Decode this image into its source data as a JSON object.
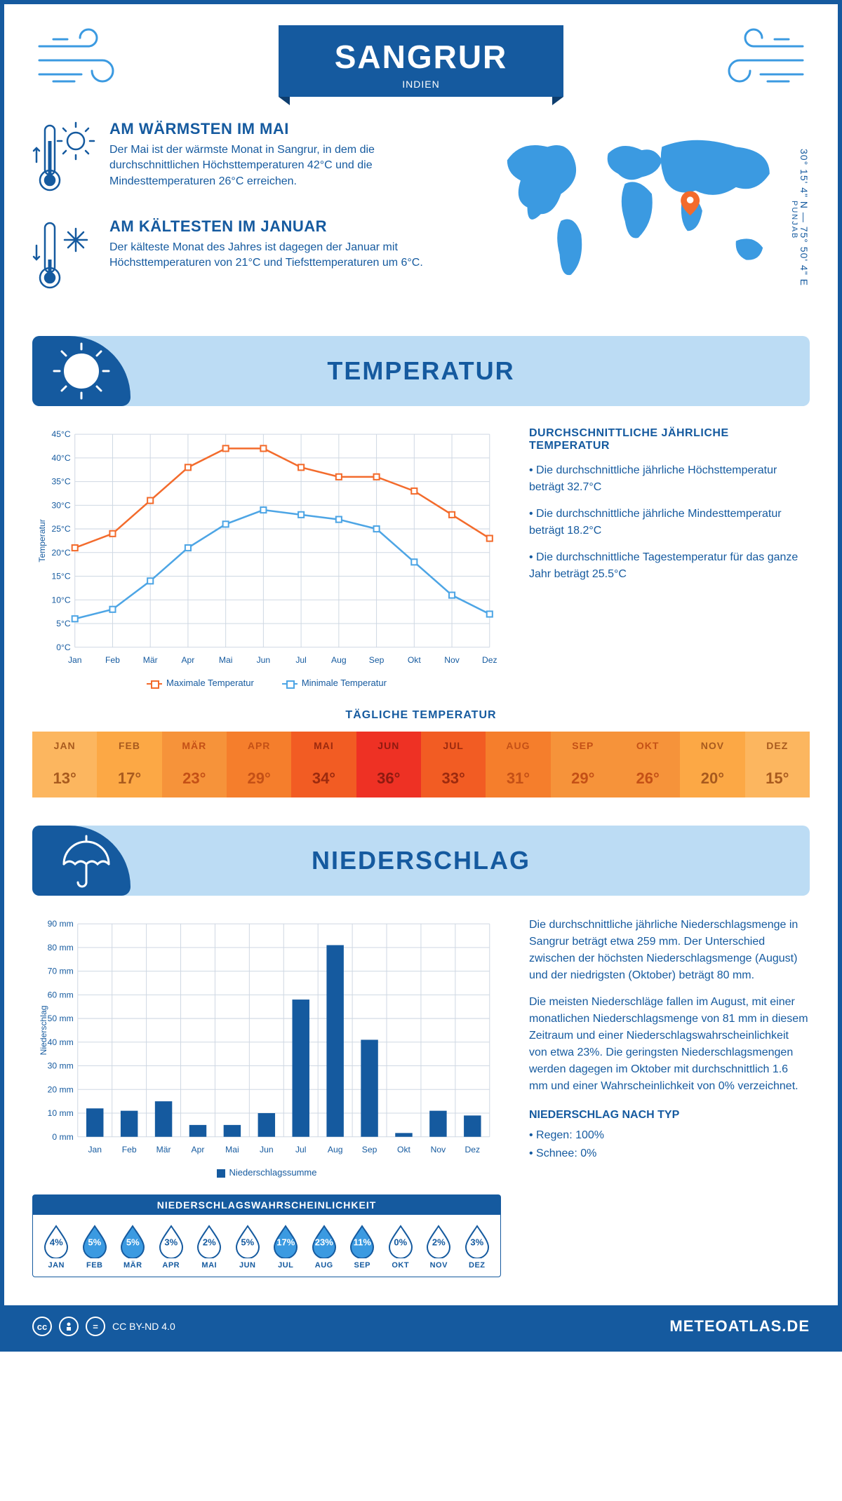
{
  "header": {
    "title": "SANGRUR",
    "country": "INDIEN"
  },
  "location": {
    "coords": "30° 15' 4\" N — 75° 50' 4\" E",
    "region": "PUNJAB",
    "marker_color": "#f36b2c",
    "map_color": "#3b9ae1"
  },
  "infoblocks": {
    "warm": {
      "title": "AM WÄRMSTEN IM MAI",
      "text": "Der Mai ist der wärmste Monat in Sangrur, in dem die durchschnittlichen Höchsttemperaturen 42°C und die Mindesttemperaturen 26°C erreichen."
    },
    "cold": {
      "title": "AM KÄLTESTEN IM JANUAR",
      "text": "Der kälteste Monat des Jahres ist dagegen der Januar mit Höchsttemperaturen von 21°C und Tiefsttemperaturen um 6°C."
    }
  },
  "sections": {
    "temp": "TEMPERATUR",
    "precip": "NIEDERSCHLAG"
  },
  "months": [
    "Jan",
    "Feb",
    "Mär",
    "Apr",
    "Mai",
    "Jun",
    "Jul",
    "Aug",
    "Sep",
    "Okt",
    "Nov",
    "Dez"
  ],
  "months_upper": [
    "JAN",
    "FEB",
    "MÄR",
    "APR",
    "MAI",
    "JUN",
    "JUL",
    "AUG",
    "SEP",
    "OKT",
    "NOV",
    "DEZ"
  ],
  "temp_chart": {
    "type": "line",
    "ylabel": "Temperatur",
    "ylim": [
      0,
      45
    ],
    "ytick_step": 5,
    "ytick_suffix": "°C",
    "max_series": [
      21,
      24,
      31,
      38,
      42,
      42,
      38,
      36,
      36,
      33,
      28,
      23
    ],
    "min_series": [
      6,
      8,
      14,
      21,
      26,
      29,
      28,
      27,
      25,
      18,
      11,
      7
    ],
    "max_color": "#f36b2c",
    "min_color": "#4da5e5",
    "grid_color": "#cfd8e3",
    "legend_max": "Maximale Temperatur",
    "legend_min": "Minimale Temperatur"
  },
  "temp_side": {
    "heading": "DURCHSCHNITTLICHE JÄHRLICHE TEMPERATUR",
    "b1": "• Die durchschnittliche jährliche Höchsttemperatur beträgt 32.7°C",
    "b2": "• Die durchschnittliche jährliche Mindesttemperatur beträgt 18.2°C",
    "b3": "• Die durchschnittliche Tagestemperatur für das ganze Jahr beträgt 25.5°C"
  },
  "daily_temp": {
    "heading": "TÄGLICHE TEMPERATUR",
    "values": [
      "13°",
      "17°",
      "23°",
      "29°",
      "34°",
      "36°",
      "33°",
      "31°",
      "29°",
      "26°",
      "20°",
      "15°"
    ],
    "colors": [
      "#fcb65f",
      "#fca845",
      "#f6933a",
      "#f57e2c",
      "#f25c23",
      "#ee3124",
      "#f25c23",
      "#f57e2c",
      "#f6933a",
      "#f6933a",
      "#fca845",
      "#fcb65f"
    ],
    "text_colors": [
      "#a85a1e",
      "#a85a1e",
      "#c45016",
      "#c45016",
      "#9c2a0e",
      "#8e1a10",
      "#9c2a0e",
      "#c45016",
      "#c45016",
      "#c45016",
      "#a85a1e",
      "#a85a1e"
    ]
  },
  "precip_chart": {
    "type": "bar",
    "ylabel": "Niederschlag",
    "ylim": [
      0,
      90
    ],
    "ytick_step": 10,
    "ytick_suffix": " mm",
    "values": [
      12,
      11,
      15,
      5,
      5,
      10,
      58,
      81,
      41,
      1.6,
      11,
      9
    ],
    "bar_color": "#155a9f",
    "legend": "Niederschlagssumme"
  },
  "precip_side": {
    "p1": "Die durchschnittliche jährliche Niederschlagsmenge in Sangrur beträgt etwa 259 mm. Der Unterschied zwischen der höchsten Niederschlagsmenge (August) und der niedrigsten (Oktober) beträgt 80 mm.",
    "p2": "Die meisten Niederschläge fallen im August, mit einer monatlichen Niederschlagsmenge von 81 mm in diesem Zeitraum und einer Niederschlagswahrscheinlichkeit von etwa 23%. Die geringsten Niederschlagsmengen werden dagegen im Oktober mit durchschnittlich 1.6 mm und einer Wahrscheinlichkeit von 0% verzeichnet.",
    "byTypeHeading": "NIEDERSCHLAG NACH TYP",
    "t1": "• Regen: 100%",
    "t2": "• Schnee: 0%"
  },
  "prob": {
    "title": "NIEDERSCHLAGSWAHRSCHEINLICHKEIT",
    "values": [
      "4%",
      "5%",
      "5%",
      "3%",
      "2%",
      "5%",
      "17%",
      "23%",
      "11%",
      "0%",
      "2%",
      "3%"
    ],
    "filled": [
      false,
      true,
      true,
      false,
      false,
      false,
      true,
      true,
      true,
      false,
      false,
      false
    ],
    "fill_color": "#3b9ae1",
    "outline_color": "#155a9f"
  },
  "footer": {
    "license": "CC BY-ND 4.0",
    "site": "METEOATLAS.DE"
  },
  "palette": {
    "brand": "#155a9f",
    "header_bg": "#bcdcf4"
  }
}
